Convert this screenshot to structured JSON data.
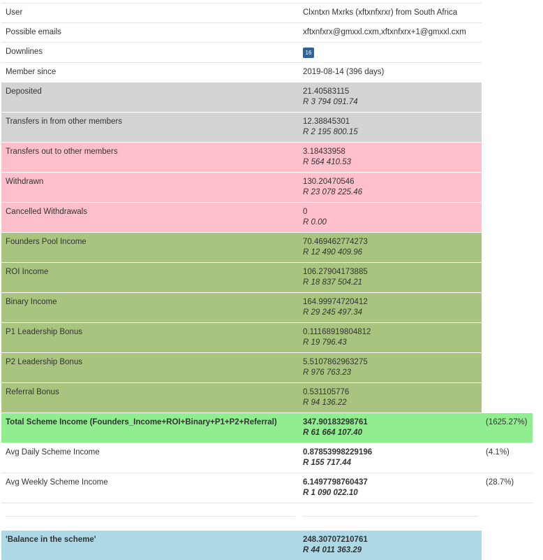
{
  "rows": [
    {
      "label": "User",
      "value": "Clxntxn Mxrks (xftxnfxrxr) from South Africa"
    },
    {
      "label": "Possible emails",
      "value": "xftxnfxrx@gmxxl.cxm,xftxnfxrx+1@gmxxl.cxm"
    },
    {
      "label": "Downlines",
      "badge": "16"
    },
    {
      "label": "Member since",
      "value": "2019-08-14 (396 days)"
    },
    {
      "label": "Deposited",
      "value": "21.40583115",
      "fiat": "R 3 794 091.74"
    },
    {
      "label": "Transfers in from other members",
      "value": "12.38845301",
      "fiat": "R 2 195 800.15"
    },
    {
      "label": "Transfers out to other members",
      "value": "3.18433958",
      "fiat": "R 564 410.53"
    },
    {
      "label": "Withdrawn",
      "value": "130.20470546",
      "fiat": "R 23 078 225.46"
    },
    {
      "label": "Cancelled Withdrawals",
      "value": "0",
      "fiat": "R 0.00"
    },
    {
      "label": "Founders Pool Income",
      "value": "70.469462774273",
      "fiat": "R 12 490 409.96"
    },
    {
      "label": "ROI Income",
      "value": "106.27904173885",
      "fiat": "R 18 837 504.21"
    },
    {
      "label": "Binary Income",
      "value": "164.99974720412",
      "fiat": "R 29 245 497.34"
    },
    {
      "label": "P1 Leadership Bonus",
      "value": "0.11168919804812",
      "fiat": "R 19 796.43"
    },
    {
      "label": "P2 Leadership Bonus",
      "value": "5.5107862963275",
      "fiat": "R 976 763.23"
    },
    {
      "label": "Referral Bonus",
      "value": "0.531105776",
      "fiat": "R 94 136.22"
    },
    {
      "label": "Total Scheme Income (Founders_Income+ROI+Binary+P1+P2+Referral)",
      "value": "347.90183298761",
      "fiat": "R 61 664 107.40",
      "percent": "(1625.27%)"
    },
    {
      "label": "Avg Daily Scheme Income",
      "value": "0.87853998229196",
      "fiat": "R 155 717.44",
      "percent": "(4.1%)"
    },
    {
      "label": "Avg Weekly Scheme Income",
      "value": "6.1497798760437",
      "fiat": "R 1 090 022.10",
      "percent": "(28.7%)"
    },
    {
      "label": "'Balance in the scheme'",
      "value": "248.30707210761",
      "fiat": "R 44 011 363.29"
    }
  ]
}
